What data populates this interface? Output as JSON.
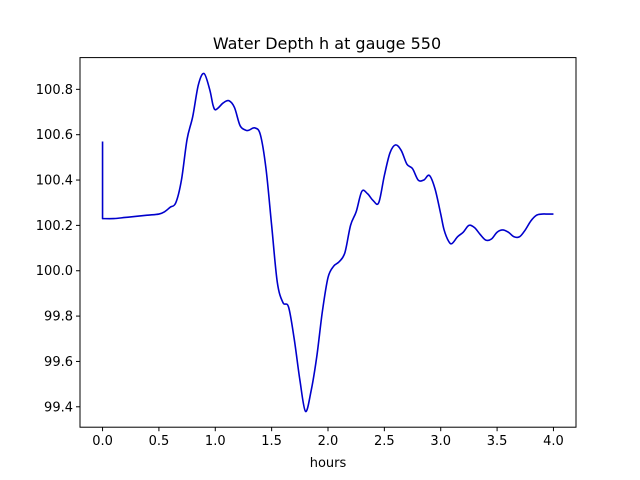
{
  "chart_data": {
    "type": "line",
    "title": "Water Depth h at gauge 550",
    "xlabel": "hours",
    "ylabel": "",
    "xlim": [
      -0.2,
      4.2
    ],
    "ylim": [
      99.31,
      100.94
    ],
    "x_ticks": [
      0.0,
      0.5,
      1.0,
      1.5,
      2.0,
      2.5,
      3.0,
      3.5,
      4.0
    ],
    "x_tick_labels": [
      "0.0",
      "0.5",
      "1.0",
      "1.5",
      "2.0",
      "2.5",
      "3.0",
      "3.5",
      "4.0"
    ],
    "y_ticks": [
      99.4,
      99.6,
      99.8,
      100.0,
      100.2,
      100.4,
      100.6,
      100.8
    ],
    "y_tick_labels": [
      "99.4",
      "99.6",
      "99.8",
      "100.0",
      "100.2",
      "100.4",
      "100.6",
      "100.8"
    ],
    "grid": false,
    "legend": "none",
    "series": [
      {
        "color": "#0000cc",
        "x": [
          0.0,
          0.0,
          0.1,
          0.2,
          0.3,
          0.4,
          0.5,
          0.55,
          0.6,
          0.65,
          0.7,
          0.75,
          0.8,
          0.85,
          0.9,
          0.95,
          0.98,
          1.0,
          1.03,
          1.07,
          1.12,
          1.17,
          1.22,
          1.27,
          1.3,
          1.35,
          1.4,
          1.45,
          1.5,
          1.55,
          1.6,
          1.65,
          1.7,
          1.75,
          1.8,
          1.85,
          1.9,
          1.95,
          2.0,
          2.05,
          2.1,
          2.15,
          2.2,
          2.25,
          2.3,
          2.35,
          2.4,
          2.45,
          2.5,
          2.55,
          2.6,
          2.65,
          2.7,
          2.75,
          2.8,
          2.85,
          2.9,
          2.95,
          3.0,
          3.03,
          3.07,
          3.1,
          3.15,
          3.2,
          3.25,
          3.3,
          3.35,
          3.4,
          3.45,
          3.5,
          3.55,
          3.6,
          3.65,
          3.7,
          3.75,
          3.8,
          3.85,
          3.9,
          3.95,
          4.0
        ],
        "y": [
          100.57,
          100.23,
          100.23,
          100.235,
          100.24,
          100.245,
          100.25,
          100.26,
          100.28,
          100.3,
          100.4,
          100.58,
          100.68,
          100.82,
          100.87,
          100.8,
          100.73,
          100.71,
          100.72,
          100.74,
          100.75,
          100.72,
          100.64,
          100.62,
          100.62,
          100.63,
          100.6,
          100.45,
          100.2,
          99.95,
          99.86,
          99.84,
          99.7,
          99.52,
          99.38,
          99.47,
          99.62,
          99.82,
          99.97,
          100.02,
          100.04,
          100.08,
          100.2,
          100.26,
          100.35,
          100.34,
          100.31,
          100.3,
          100.42,
          100.52,
          100.555,
          100.53,
          100.47,
          100.45,
          100.4,
          100.4,
          100.42,
          100.36,
          100.25,
          100.18,
          100.13,
          100.12,
          100.15,
          100.17,
          100.2,
          100.19,
          100.16,
          100.135,
          100.14,
          100.17,
          100.18,
          100.17,
          100.15,
          100.15,
          100.18,
          100.22,
          100.245,
          100.25,
          100.25,
          100.25
        ]
      }
    ]
  }
}
